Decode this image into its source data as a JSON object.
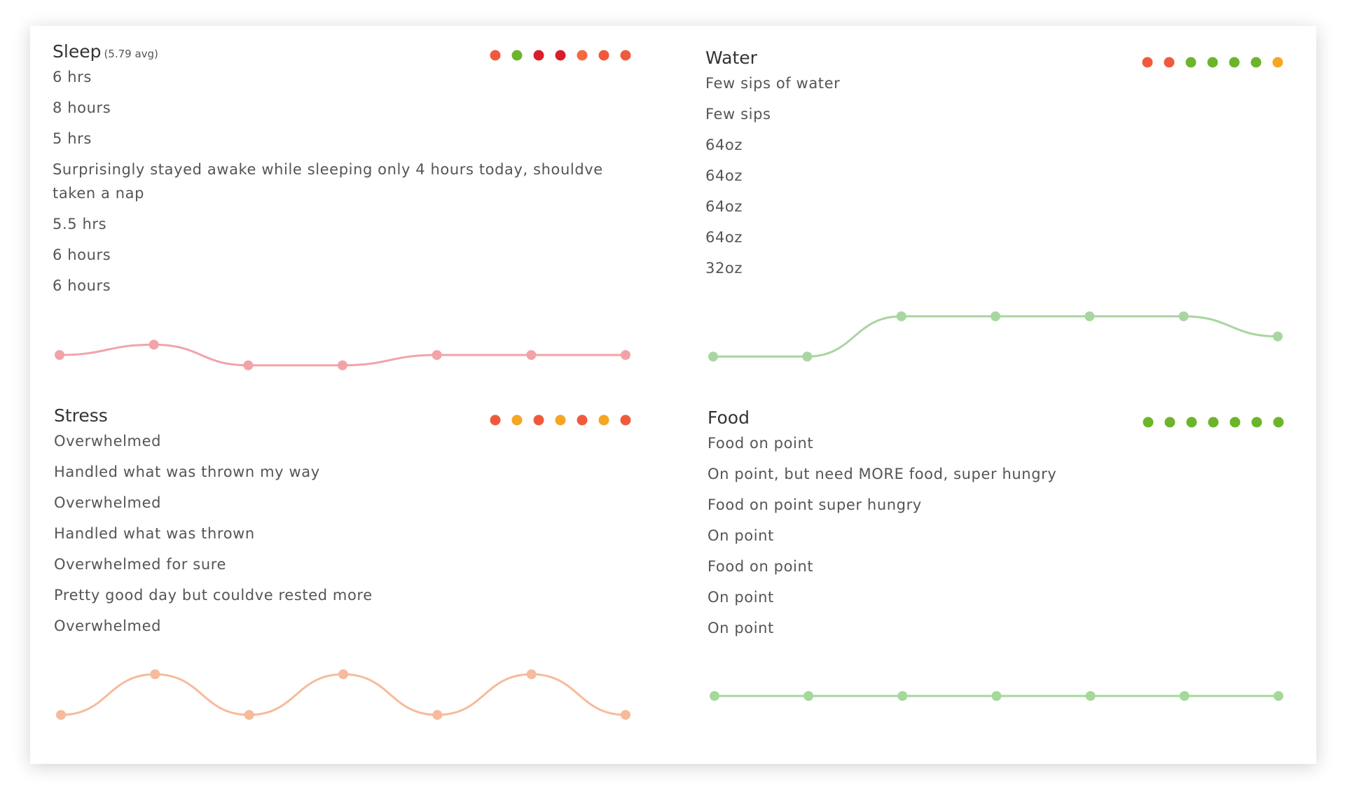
{
  "panels": [
    {
      "title": "Sleep",
      "subtitle": "(5.79 avg)",
      "entries": [
        "6 hrs",
        "8 hours",
        "5 hrs",
        "Surprisingly stayed awake while sleeping only 4 hours today, shouldve taken a nap",
        "5.5 hrs",
        "6 hours",
        "6 hours"
      ],
      "dot_colors": [
        "#f05a3c",
        "#6cb52a",
        "#d91e2a",
        "#d91e2a",
        "#f26a3d",
        "#f05a3c",
        "#f05a3c"
      ],
      "line": {
        "values": [
          2,
          3,
          1,
          1,
          2,
          2,
          2
        ],
        "ylim": [
          -2,
          6
        ],
        "color": "#f2a3a8"
      }
    },
    {
      "title": "Water",
      "entries": [
        "Few sips of water",
        "Few sips",
        "64oz",
        "64oz",
        "64oz",
        "64oz",
        "32oz"
      ],
      "dot_colors": [
        "#f05a3c",
        "#f05a3c",
        "#6cb52a",
        "#6cb52a",
        "#6cb52a",
        "#6cb52a",
        "#f5a623"
      ],
      "line": {
        "values": [
          1,
          1,
          3,
          3,
          3,
          3,
          2
        ],
        "ylim": [
          0,
          4
        ],
        "color": "#a8d6a0"
      }
    },
    {
      "title": "Stress",
      "entries": [
        "Overwhelmed",
        "Handled what was thrown my way",
        "Overwhelmed",
        "Handled what was thrown",
        "Overwhelmed for sure",
        "Pretty good day but couldve rested more",
        "Overwhelmed"
      ],
      "dot_colors": [
        "#f05a3c",
        "#f5a623",
        "#f05a3c",
        "#f5a623",
        "#f05a3c",
        "#f5a623",
        "#f05a3c"
      ],
      "line": {
        "values": [
          1,
          3,
          1,
          3,
          1,
          3,
          1
        ],
        "ylim": [
          0,
          4
        ],
        "color": "#f5bb9a"
      }
    },
    {
      "title": "Food",
      "entries": [
        "Food on point",
        "On point, but need MORE food, super hungry",
        "Food on point super hungry",
        "On point",
        "Food on point",
        "On point",
        "On point"
      ],
      "dot_colors": [
        "#6cb52a",
        "#6cb52a",
        "#6cb52a",
        "#6cb52a",
        "#6cb52a",
        "#6cb52a",
        "#6cb52a"
      ],
      "line": {
        "values": [
          3,
          3,
          3,
          3,
          3,
          3,
          3
        ],
        "ylim": [
          0,
          4
        ],
        "color": "#a5d99a"
      }
    }
  ]
}
